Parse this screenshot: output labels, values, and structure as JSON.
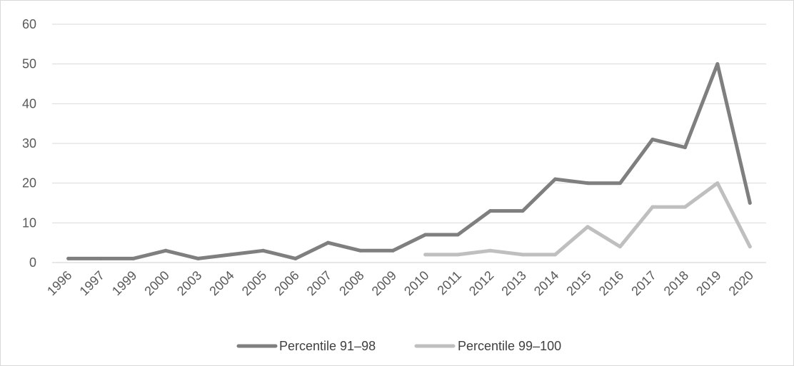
{
  "chart_data": {
    "type": "line",
    "title": "",
    "xlabel": "",
    "ylabel": "",
    "ylim": [
      0,
      60
    ],
    "yticks": [
      0,
      10,
      20,
      30,
      40,
      50,
      60
    ],
    "grid": true,
    "legend_position": "bottom",
    "categories": [
      "1996",
      "1997",
      "1999",
      "2000",
      "2003",
      "2004",
      "2005",
      "2006",
      "2007",
      "2008",
      "2009",
      "2010",
      "2011",
      "2012",
      "2013",
      "2014",
      "2015",
      "2016",
      "2017",
      "2018",
      "2019",
      "2020"
    ],
    "series": [
      {
        "name": "Percentile 91–98",
        "color": "#7f7f7f",
        "values": [
          1,
          1,
          1,
          3,
          1,
          2,
          3,
          1,
          5,
          3,
          3,
          7,
          7,
          13,
          13,
          21,
          20,
          20,
          31,
          29,
          50,
          15
        ]
      },
      {
        "name": "Percentile 99–100",
        "color": "#bfbfbf",
        "values": [
          null,
          null,
          null,
          null,
          null,
          null,
          null,
          null,
          null,
          null,
          null,
          2,
          2,
          3,
          2,
          2,
          9,
          4,
          14,
          14,
          20,
          4
        ]
      }
    ]
  }
}
